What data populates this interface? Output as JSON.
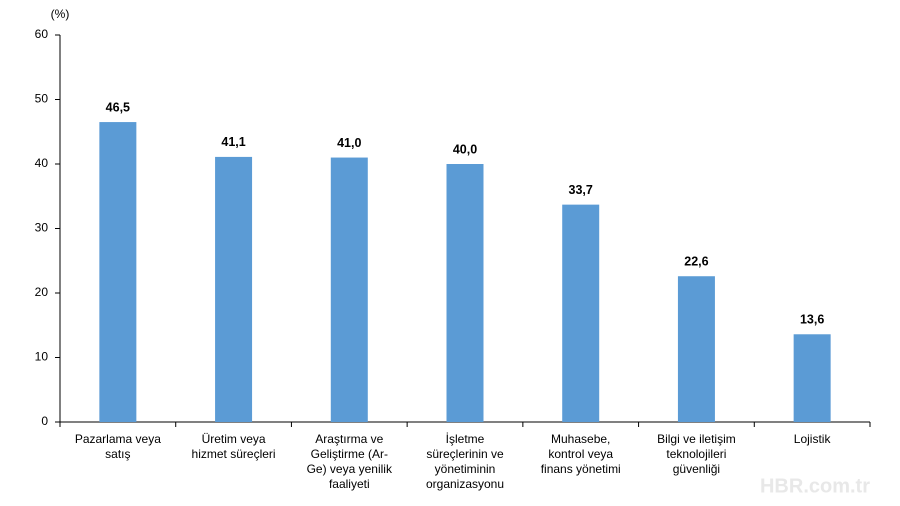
{
  "chart_data": {
    "type": "bar",
    "y_label": "(%)",
    "categories": [
      [
        "Pazarlama veya",
        "satış"
      ],
      [
        "Üretim veya",
        "hizmet süreçleri"
      ],
      [
        "Araştırma ve",
        "Geliştirme (Ar-",
        "Ge) veya yenilik",
        "faaliyeti"
      ],
      [
        "İşletme",
        "süreçlerinin ve",
        "yönetiminin",
        "organizasyonu"
      ],
      [
        "Muhasebe,",
        "kontrol veya",
        "finans yönetimi"
      ],
      [
        "Bilgi ve iletişim",
        "teknolojileri",
        "güvenliği"
      ],
      [
        "Lojistik"
      ]
    ],
    "values": [
      46.5,
      41.1,
      41.0,
      40.0,
      33.7,
      22.6,
      13.6
    ],
    "value_labels": [
      "46,5",
      "41,1",
      "41,0",
      "40,0",
      "33,7",
      "22,6",
      "13,6"
    ],
    "color": "#5b9bd5",
    "ylim": [
      0,
      60
    ],
    "yticks": [
      0,
      10,
      20,
      30,
      40,
      50,
      60
    ],
    "grid": false,
    "watermark": "HBR.com.tr"
  }
}
